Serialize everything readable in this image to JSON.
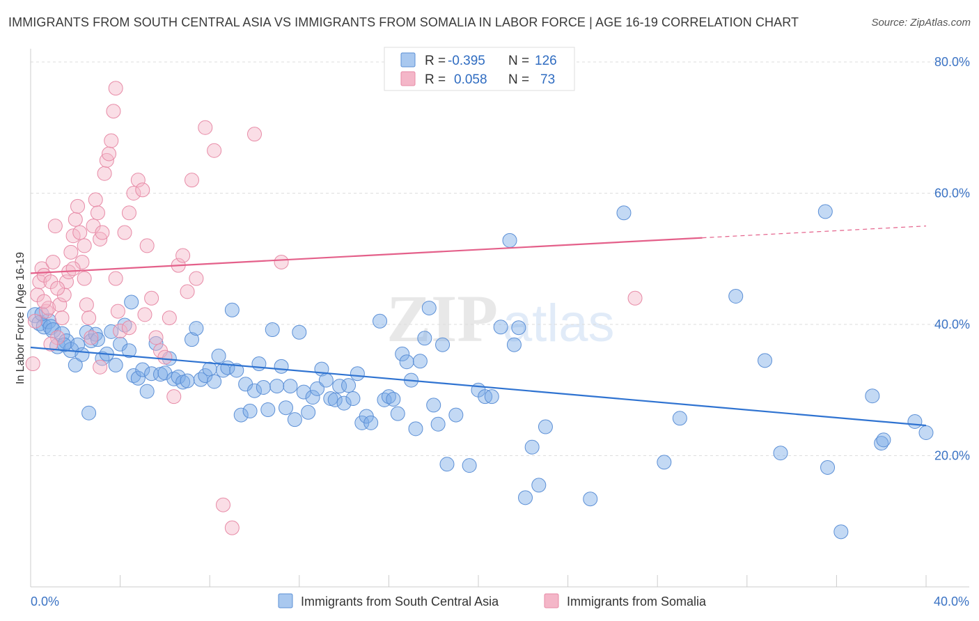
{
  "header": {
    "title": "IMMIGRANTS FROM SOUTH CENTRAL ASIA VS IMMIGRANTS FROM SOMALIA IN LABOR FORCE | AGE 16-19 CORRELATION CHART",
    "source": "Source: ZipAtlas.com"
  },
  "watermark": {
    "zip": "ZIP",
    "atlas": "atlas"
  },
  "legend": {
    "rows": [
      {
        "r_label": "R =",
        "r_value": "-0.395",
        "n_label": "N =",
        "n_value": "126",
        "color": "#a9c8ef"
      },
      {
        "r_label": "R =",
        "r_value": "0.058",
        "n_label": "N =",
        "n_value": "73",
        "color": "#f4b6c8"
      }
    ]
  },
  "bottom_legend": [
    {
      "label": "Immigrants from South Central Asia",
      "color": "#a9c8ef"
    },
    {
      "label": "Immigrants from Somalia",
      "color": "#f4b6c8"
    }
  ],
  "chart_data": {
    "type": "scatter",
    "title": "IMMIGRANTS FROM SOUTH CENTRAL ASIA VS IMMIGRANTS FROM SOMALIA IN LABOR FORCE | AGE 16-19 CORRELATION CHART",
    "xlabel": "",
    "ylabel": "In Labor Force | Age 16-19",
    "xlim": [
      0,
      40
    ],
    "ylim": [
      0,
      80
    ],
    "x_tick_labels": [
      "0.0%",
      "40.0%"
    ],
    "y_tick_labels": [
      "20.0%",
      "40.0%",
      "60.0%",
      "80.0%"
    ],
    "y_tick_values": [
      20,
      40,
      60,
      80
    ],
    "grid": "horizontal dashed",
    "legend_position": "top-center",
    "series": [
      {
        "name": "Immigrants from South Central Asia",
        "color": "#7aaae6",
        "stroke": "#5b8fd6",
        "trend": {
          "x": [
            0,
            40
          ],
          "y": [
            36.5,
            24.6
          ],
          "color": "#2f73d1"
        },
        "points": [
          [
            0.2,
            41.4
          ],
          [
            0.4,
            40.2
          ],
          [
            0.6,
            39.7
          ],
          [
            0.8,
            40.5
          ],
          [
            0.9,
            39.6
          ],
          [
            1.0,
            39.1
          ],
          [
            1.2,
            36.7
          ],
          [
            1.4,
            38.5
          ],
          [
            1.6,
            37.4
          ],
          [
            1.8,
            36.1
          ],
          [
            2.0,
            33.8
          ],
          [
            2.1,
            36.9
          ],
          [
            2.3,
            35.4
          ],
          [
            2.5,
            38.8
          ],
          [
            2.7,
            37.5
          ],
          [
            2.9,
            38.5
          ],
          [
            3.0,
            37.7
          ],
          [
            3.2,
            34.8
          ],
          [
            3.4,
            35.5
          ],
          [
            3.6,
            38.9
          ],
          [
            3.8,
            33.8
          ],
          [
            4.0,
            37.0
          ],
          [
            4.2,
            39.9
          ],
          [
            4.4,
            36.0
          ],
          [
            4.6,
            32.2
          ],
          [
            4.8,
            31.8
          ],
          [
            5.0,
            33.1
          ],
          [
            5.2,
            29.8
          ],
          [
            5.4,
            32.5
          ],
          [
            5.6,
            37.1
          ],
          [
            5.8,
            32.4
          ],
          [
            6.0,
            32.6
          ],
          [
            6.2,
            34.8
          ],
          [
            6.4,
            31.7
          ],
          [
            6.6,
            32.0
          ],
          [
            6.8,
            31.2
          ],
          [
            7.0,
            31.4
          ],
          [
            7.2,
            37.7
          ],
          [
            7.4,
            39.4
          ],
          [
            7.6,
            31.6
          ],
          [
            7.8,
            32.2
          ],
          [
            8.0,
            33.2
          ],
          [
            8.2,
            31.3
          ],
          [
            8.4,
            35.2
          ],
          [
            8.6,
            33.0
          ],
          [
            8.8,
            33.4
          ],
          [
            9.0,
            42.2
          ],
          [
            9.2,
            33.0
          ],
          [
            9.4,
            26.2
          ],
          [
            9.6,
            30.9
          ],
          [
            9.8,
            26.8
          ],
          [
            10.0,
            29.9
          ],
          [
            10.2,
            34.0
          ],
          [
            10.4,
            30.4
          ],
          [
            10.6,
            27.0
          ],
          [
            10.8,
            39.2
          ],
          [
            11.0,
            30.6
          ],
          [
            11.2,
            33.6
          ],
          [
            11.4,
            27.3
          ],
          [
            11.6,
            30.6
          ],
          [
            11.8,
            25.5
          ],
          [
            12.0,
            38.8
          ],
          [
            12.2,
            29.7
          ],
          [
            12.4,
            26.6
          ],
          [
            12.6,
            28.9
          ],
          [
            12.8,
            30.2
          ],
          [
            13.0,
            33.2
          ],
          [
            13.2,
            31.5
          ],
          [
            13.4,
            28.7
          ],
          [
            13.6,
            28.5
          ],
          [
            13.8,
            30.6
          ],
          [
            14.0,
            28.0
          ],
          [
            14.2,
            30.7
          ],
          [
            14.4,
            28.7
          ],
          [
            14.6,
            32.5
          ],
          [
            14.8,
            25.0
          ],
          [
            15.0,
            26.0
          ],
          [
            15.2,
            25.0
          ],
          [
            15.6,
            40.5
          ],
          [
            15.8,
            28.5
          ],
          [
            16.0,
            29.0
          ],
          [
            16.2,
            28.6
          ],
          [
            16.4,
            26.4
          ],
          [
            16.6,
            35.5
          ],
          [
            16.8,
            34.3
          ],
          [
            17.0,
            31.5
          ],
          [
            17.2,
            24.1
          ],
          [
            17.4,
            34.4
          ],
          [
            17.6,
            37.9
          ],
          [
            17.8,
            42.5
          ],
          [
            18.0,
            27.7
          ],
          [
            18.2,
            24.8
          ],
          [
            18.4,
            36.9
          ],
          [
            18.6,
            18.7
          ],
          [
            19.0,
            26.2
          ],
          [
            19.6,
            18.5
          ],
          [
            20.0,
            30.0
          ],
          [
            20.3,
            29.0
          ],
          [
            20.6,
            29.0
          ],
          [
            21.0,
            39.6
          ],
          [
            21.4,
            52.8
          ],
          [
            21.6,
            36.9
          ],
          [
            21.8,
            39.5
          ],
          [
            22.1,
            13.6
          ],
          [
            22.4,
            21.3
          ],
          [
            22.7,
            15.5
          ],
          [
            23.0,
            24.4
          ],
          [
            25.0,
            13.4
          ],
          [
            26.5,
            57.0
          ],
          [
            28.3,
            19.0
          ],
          [
            29.0,
            25.7
          ],
          [
            31.5,
            44.3
          ],
          [
            32.8,
            34.5
          ],
          [
            33.5,
            20.4
          ],
          [
            35.5,
            57.2
          ],
          [
            35.6,
            18.2
          ],
          [
            36.2,
            8.4
          ],
          [
            37.6,
            29.1
          ],
          [
            38.0,
            21.9
          ],
          [
            38.1,
            22.4
          ],
          [
            39.5,
            25.2
          ],
          [
            40.0,
            23.5
          ],
          [
            0.5,
            41.6
          ],
          [
            1.5,
            36.9
          ],
          [
            2.6,
            26.5
          ],
          [
            4.5,
            43.4
          ]
        ]
      },
      {
        "name": "Immigrants from Somalia",
        "color": "#f4b6c8",
        "stroke": "#e78aa6",
        "trend": {
          "x": [
            0,
            30
          ],
          "y": [
            47.8,
            53.2
          ],
          "x_dashed": [
            30,
            40
          ],
          "y_dashed": [
            53.2,
            55.0
          ],
          "color": "#e4608a"
        },
        "points": [
          [
            0.1,
            34.0
          ],
          [
            0.2,
            40.5
          ],
          [
            0.3,
            44.5
          ],
          [
            0.4,
            46.5
          ],
          [
            0.5,
            48.5
          ],
          [
            0.6,
            47.5
          ],
          [
            0.7,
            42.0
          ],
          [
            0.8,
            42.5
          ],
          [
            0.9,
            46.5
          ],
          [
            1.0,
            49.5
          ],
          [
            1.1,
            55.0
          ],
          [
            1.2,
            38.0
          ],
          [
            1.3,
            43.0
          ],
          [
            1.4,
            41.0
          ],
          [
            1.5,
            44.5
          ],
          [
            1.6,
            46.5
          ],
          [
            1.7,
            48.0
          ],
          [
            1.8,
            51.0
          ],
          [
            1.9,
            53.5
          ],
          [
            2.0,
            56.0
          ],
          [
            2.1,
            58.0
          ],
          [
            2.2,
            54.0
          ],
          [
            2.3,
            49.5
          ],
          [
            2.4,
            47.0
          ],
          [
            2.5,
            43.0
          ],
          [
            2.6,
            41.0
          ],
          [
            2.7,
            38.0
          ],
          [
            2.8,
            55.0
          ],
          [
            2.9,
            59.0
          ],
          [
            3.0,
            57.0
          ],
          [
            3.1,
            53.0
          ],
          [
            3.2,
            54.0
          ],
          [
            3.3,
            63.0
          ],
          [
            3.4,
            65.0
          ],
          [
            3.5,
            66.0
          ],
          [
            3.6,
            68.0
          ],
          [
            3.7,
            72.5
          ],
          [
            3.8,
            47.0
          ],
          [
            3.9,
            42.0
          ],
          [
            4.0,
            39.0
          ],
          [
            4.2,
            54.0
          ],
          [
            4.4,
            57.0
          ],
          [
            4.6,
            60.0
          ],
          [
            4.8,
            62.0
          ],
          [
            5.0,
            60.5
          ],
          [
            5.2,
            52.0
          ],
          [
            5.4,
            44.0
          ],
          [
            5.6,
            38.0
          ],
          [
            5.8,
            36.0
          ],
          [
            6.0,
            35.0
          ],
          [
            6.2,
            41.0
          ],
          [
            6.4,
            29.0
          ],
          [
            6.6,
            49.0
          ],
          [
            6.8,
            50.5
          ],
          [
            7.0,
            45.0
          ],
          [
            7.2,
            62.0
          ],
          [
            7.4,
            47.0
          ],
          [
            7.8,
            70.0
          ],
          [
            8.2,
            66.5
          ],
          [
            8.6,
            12.5
          ],
          [
            9.0,
            9.0
          ],
          [
            10.0,
            69.0
          ],
          [
            11.2,
            49.5
          ],
          [
            3.8,
            76.0
          ],
          [
            1.9,
            48.5
          ],
          [
            2.4,
            52.0
          ],
          [
            1.2,
            45.5
          ],
          [
            0.9,
            37.0
          ],
          [
            3.1,
            33.5
          ],
          [
            4.4,
            39.5
          ],
          [
            5.1,
            41.5
          ],
          [
            27.0,
            44.0
          ],
          [
            0.6,
            43.5
          ]
        ]
      }
    ]
  }
}
